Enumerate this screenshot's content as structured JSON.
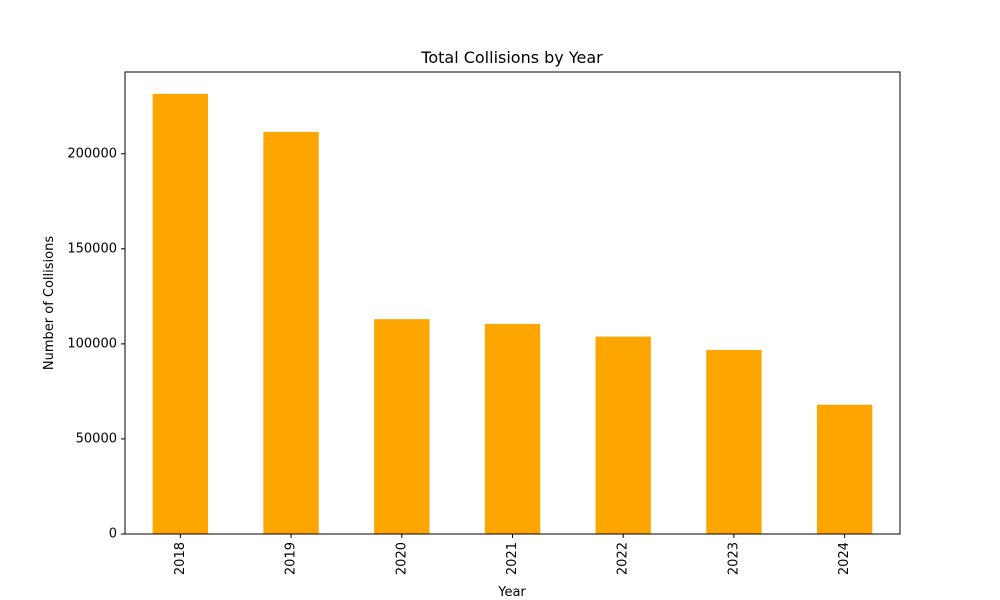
{
  "chart_data": {
    "type": "bar",
    "title": "Total Collisions by Year",
    "xlabel": "Year",
    "ylabel": "Number of Collisions",
    "categories": [
      "2018",
      "2019",
      "2020",
      "2021",
      "2022",
      "2023",
      "2024"
    ],
    "values": [
      231500,
      211500,
      113000,
      110500,
      103800,
      96800,
      68000
    ],
    "ylim": [
      0,
      243000
    ],
    "yticks": [
      0,
      50000,
      100000,
      150000,
      200000
    ],
    "ytick_labels": [
      "0",
      "50000",
      "100000",
      "150000",
      "200000"
    ],
    "bar_color": "#FFA500",
    "grid": false,
    "legend": false
  }
}
